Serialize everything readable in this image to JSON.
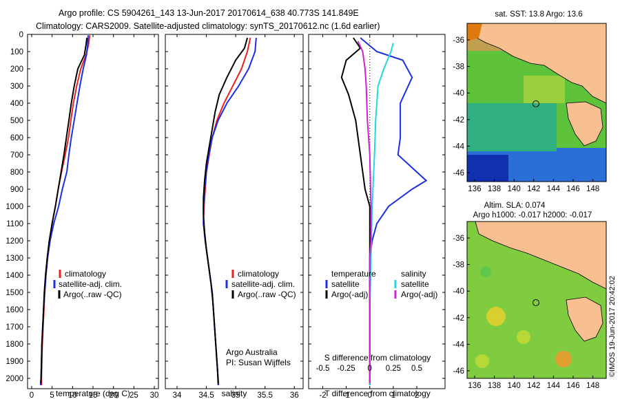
{
  "header": {
    "line1": "Argo profile: CS 5904261_143 13-Jun-2017 20170614_638 40.773S 141.849E",
    "line2": "Climatology: CARS2009. Satellite-adjusted climatology: synTS_20170612.nc (1.6d earlier)"
  },
  "footer_credit": "©IMOS 19-Jun-2017 20:42:02",
  "colors": {
    "climatology": "#e82020",
    "satellite": "#1a2ee6",
    "argo": "#000000",
    "sal_satellite": "#22d8e0",
    "sal_argo": "#d020d0"
  },
  "chart_data": [
    {
      "id": "temperature",
      "type": "line",
      "xlabel": "temperature (deg C)",
      "ylabel": "",
      "xlim": [
        -1,
        31
      ],
      "ylim": [
        2060,
        0
      ],
      "xticks": [
        0,
        5,
        10,
        15,
        20,
        25,
        30
      ],
      "yticks": [
        0,
        100,
        200,
        300,
        400,
        500,
        600,
        700,
        800,
        900,
        1000,
        1100,
        1200,
        1300,
        1400,
        1500,
        1600,
        1700,
        1800,
        1900,
        2000
      ],
      "legend": [
        "climatology",
        "satellite-adj. clim.",
        "Argo(..raw -QC)"
      ],
      "series": [
        {
          "name": "climatology",
          "color": "climatology",
          "points": [
            [
              14.2,
              5
            ],
            [
              13.9,
              60
            ],
            [
              13.3,
              120
            ],
            [
              12.0,
              200
            ],
            [
              11.0,
              300
            ],
            [
              10.2,
              400
            ],
            [
              9.6,
              500
            ],
            [
              9.0,
              600
            ],
            [
              8.2,
              700
            ],
            [
              7.3,
              800
            ],
            [
              6.5,
              900
            ],
            [
              5.8,
              1000
            ],
            [
              5.0,
              1100
            ],
            [
              4.4,
              1200
            ],
            [
              3.9,
              1300
            ],
            [
              3.5,
              1400
            ],
            [
              3.2,
              1500
            ],
            [
              3.0,
              1600
            ],
            [
              2.8,
              1700
            ],
            [
              2.6,
              1800
            ],
            [
              2.5,
              1900
            ],
            [
              2.4,
              2000
            ],
            [
              2.4,
              2040
            ]
          ]
        },
        {
          "name": "satellite-adj. clim.",
          "color": "satellite",
          "points": [
            [
              13.8,
              5
            ],
            [
              13.7,
              60
            ],
            [
              13.4,
              120
            ],
            [
              12.6,
              200
            ],
            [
              11.8,
              300
            ],
            [
              11.1,
              400
            ],
            [
              10.4,
              500
            ],
            [
              9.7,
              600
            ],
            [
              9.1,
              700
            ],
            [
              8.6,
              800
            ],
            [
              7.5,
              900
            ],
            [
              6.6,
              1000
            ],
            [
              5.4,
              1100
            ],
            [
              4.5,
              1200
            ],
            [
              3.9,
              1300
            ],
            [
              3.5,
              1400
            ],
            [
              3.2,
              1500
            ],
            [
              2.9,
              1600
            ],
            [
              2.7,
              1700
            ],
            [
              2.5,
              1800
            ],
            [
              2.4,
              1900
            ],
            [
              2.3,
              2000
            ],
            [
              2.2,
              2040
            ]
          ]
        },
        {
          "name": "Argo(..raw -QC)",
          "color": "argo",
          "points": [
            [
              13.5,
              20
            ],
            [
              13.3,
              60
            ],
            [
              12.9,
              120
            ],
            [
              11.3,
              200
            ],
            [
              10.4,
              300
            ],
            [
              9.7,
              400
            ],
            [
              9.1,
              500
            ],
            [
              8.5,
              600
            ],
            [
              7.9,
              700
            ],
            [
              7.2,
              800
            ],
            [
              6.5,
              900
            ],
            [
              5.8,
              1000
            ],
            [
              5.0,
              1100
            ],
            [
              4.3,
              1200
            ],
            [
              3.8,
              1300
            ],
            [
              3.4,
              1400
            ],
            [
              3.1,
              1500
            ],
            [
              2.9,
              1600
            ],
            [
              2.7,
              1700
            ],
            [
              2.5,
              1800
            ],
            [
              2.4,
              1900
            ],
            [
              2.3,
              2000
            ],
            [
              2.2,
              2030
            ]
          ]
        }
      ]
    },
    {
      "id": "salinity",
      "type": "line",
      "xlabel": "salinity",
      "ylabel": "",
      "xlim": [
        33.8,
        36.15
      ],
      "ylim": [
        2060,
        0
      ],
      "xticks": [
        34,
        34.5,
        35,
        35.5,
        36
      ],
      "legend": [
        "climatology",
        "satellite-adj. clim.",
        "Argo(..raw -QC)"
      ],
      "annotations": [
        "Argo Australia",
        "PI: Susan Wijffels"
      ],
      "series": [
        {
          "name": "climatology",
          "color": "climatology",
          "points": [
            [
              35.25,
              20
            ],
            [
              35.2,
              100
            ],
            [
              35.1,
              200
            ],
            [
              34.95,
              300
            ],
            [
              34.8,
              400
            ],
            [
              34.68,
              500
            ],
            [
              34.6,
              600
            ],
            [
              34.55,
              700
            ],
            [
              34.5,
              800
            ],
            [
              34.48,
              900
            ],
            [
              34.46,
              1000
            ],
            [
              34.45,
              1100
            ],
            [
              34.48,
              1200
            ],
            [
              34.52,
              1300
            ],
            [
              34.56,
              1400
            ],
            [
              34.6,
              1500
            ],
            [
              34.62,
              1600
            ],
            [
              34.64,
              1700
            ],
            [
              34.66,
              1800
            ],
            [
              34.68,
              1900
            ],
            [
              34.7,
              2000
            ],
            [
              34.71,
              2040
            ]
          ]
        },
        {
          "name": "satellite-adj. clim.",
          "color": "satellite",
          "points": [
            [
              35.35,
              20
            ],
            [
              35.33,
              100
            ],
            [
              35.22,
              200
            ],
            [
              35.05,
              300
            ],
            [
              34.85,
              400
            ],
            [
              34.7,
              500
            ],
            [
              34.6,
              600
            ],
            [
              34.54,
              700
            ],
            [
              34.5,
              800
            ],
            [
              34.47,
              900
            ],
            [
              34.45,
              1000
            ],
            [
              34.45,
              1100
            ],
            [
              34.48,
              1200
            ],
            [
              34.52,
              1300
            ],
            [
              34.56,
              1400
            ],
            [
              34.6,
              1500
            ],
            [
              34.62,
              1600
            ],
            [
              34.64,
              1700
            ],
            [
              34.66,
              1800
            ],
            [
              34.68,
              1900
            ],
            [
              34.7,
              2000
            ],
            [
              34.7,
              2040
            ]
          ]
        },
        {
          "name": "Argo(..raw -QC)",
          "color": "argo",
          "points": [
            [
              35.2,
              20
            ],
            [
              35.15,
              80
            ],
            [
              35.0,
              150
            ],
            [
              34.85,
              250
            ],
            [
              34.72,
              350
            ],
            [
              34.65,
              450
            ],
            [
              34.6,
              550
            ],
            [
              34.55,
              650
            ],
            [
              34.5,
              750
            ],
            [
              34.47,
              850
            ],
            [
              34.45,
              950
            ],
            [
              34.45,
              1050
            ],
            [
              34.47,
              1150
            ],
            [
              34.5,
              1250
            ],
            [
              34.54,
              1350
            ],
            [
              34.58,
              1450
            ],
            [
              34.61,
              1550
            ],
            [
              34.63,
              1650
            ],
            [
              34.65,
              1750
            ],
            [
              34.67,
              1850
            ],
            [
              34.69,
              1950
            ],
            [
              34.7,
              2030
            ]
          ]
        }
      ]
    },
    {
      "id": "differences",
      "type": "line",
      "xlabel": "T difference from climatology",
      "xlabel_top": "S difference from climatology",
      "xlim": [
        -2.6,
        3.2
      ],
      "ylim": [
        2060,
        0
      ],
      "xticks": [
        -2,
        -1,
        0,
        1,
        2
      ],
      "xticks_s_labels": [
        "-0.5",
        "-0.25",
        "0",
        "0.25",
        "0.5"
      ],
      "legend_titles": [
        "temperature",
        "salinity"
      ],
      "legend": [
        "satellite",
        "Argo(-adj)",
        "satellite",
        "Argo(-adj)"
      ],
      "series": [
        {
          "name": "satellite",
          "color": "satellite",
          "points": [
            [
              -0.4,
              20
            ],
            [
              0.3,
              100
            ],
            [
              1.4,
              150
            ],
            [
              1.8,
              250
            ],
            [
              1.3,
              400
            ],
            [
              1.3,
              500
            ],
            [
              1.3,
              600
            ],
            [
              1.2,
              700
            ],
            [
              2.0,
              800
            ],
            [
              2.4,
              850
            ],
            [
              1.8,
              900
            ],
            [
              0.8,
              1000
            ],
            [
              0.3,
              1100
            ],
            [
              0.1,
              1200
            ],
            [
              0.0,
              1300
            ],
            [
              0.0,
              1500
            ],
            [
              0.0,
              2040
            ]
          ]
        },
        {
          "name": "Argo(-adj)",
          "color": "argo",
          "points": [
            [
              -0.7,
              20
            ],
            [
              -0.4,
              80
            ],
            [
              -1.0,
              150
            ],
            [
              -1.2,
              250
            ],
            [
              -0.9,
              350
            ],
            [
              -0.6,
              500
            ],
            [
              -0.4,
              700
            ],
            [
              -0.2,
              900
            ],
            [
              0.0,
              1000
            ],
            [
              0.0,
              1100
            ],
            [
              0.0,
              1200
            ],
            [
              0.0,
              1300
            ],
            [
              0.0,
              2030
            ]
          ]
        },
        {
          "name": "satellite",
          "color": "sal_satellite",
          "points": [
            [
              1.0,
              50
            ],
            [
              0.9,
              100
            ],
            [
              0.6,
              200
            ],
            [
              0.35,
              300
            ],
            [
              0.25,
              500
            ],
            [
              0.2,
              700
            ],
            [
              0.1,
              1000
            ],
            [
              0.05,
              1300
            ],
            [
              0.0,
              1600
            ],
            [
              0.0,
              2040
            ]
          ]
        },
        {
          "name": "Argo(-adj)",
          "color": "sal_argo",
          "points": [
            [
              -0.5,
              40
            ],
            [
              -0.3,
              100
            ],
            [
              -0.2,
              200
            ],
            [
              -0.15,
              300
            ],
            [
              -0.1,
              500
            ],
            [
              0.0,
              700
            ],
            [
              0.05,
              1000
            ],
            [
              0.05,
              1200
            ],
            [
              0.0,
              1300
            ],
            [
              0.0,
              2030
            ]
          ]
        }
      ]
    }
  ],
  "maps": [
    {
      "id": "sst-map",
      "title": "sat. SST: 13.8 Argo: 13.6",
      "xticks": [
        "136",
        "138",
        "140",
        "142",
        "144",
        "146",
        "148"
      ],
      "yticks": [
        "-36",
        "-38",
        "-40",
        "-42",
        "-44",
        "-46"
      ]
    },
    {
      "id": "sla-map",
      "title": "Altim. SLA: 0.074",
      "subtitle": "Argo h1000: -0.017 h2000: -0.017",
      "xticks": [
        "136",
        "138",
        "140",
        "142",
        "144",
        "146",
        "148"
      ],
      "yticks": [
        "-36",
        "-38",
        "-40",
        "-42",
        "-44",
        "-46"
      ]
    }
  ]
}
